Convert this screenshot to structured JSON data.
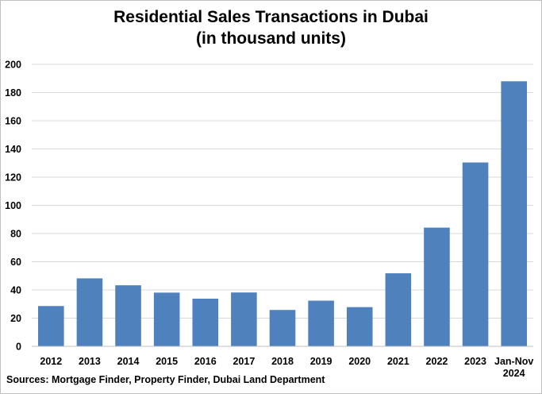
{
  "chart_data": {
    "type": "bar",
    "title": "Residential Sales Transactions in Dubai",
    "subtitle": "(in thousand units)",
    "categories": [
      "2012",
      "2013",
      "2014",
      "2015",
      "2016",
      "2017",
      "2018",
      "2019",
      "2020",
      "2021",
      "2022",
      "2023",
      "Jan-Nov 2024"
    ],
    "values": [
      28.6,
      48.2,
      43.3,
      38.1,
      33.8,
      38.2,
      25.8,
      32.4,
      27.8,
      51.8,
      84.2,
      130.4,
      188.0
    ],
    "ylim": [
      0,
      200
    ],
    "yticks": [
      0,
      20,
      40,
      60,
      80,
      100,
      120,
      140,
      160,
      180,
      200
    ],
    "grid": true,
    "legend": "none",
    "bar_color": "#4F81BD",
    "grid_color": "#d9d9d9",
    "source": "Sources: Mortgage Finder, Property Finder, Dubai Land Department"
  }
}
